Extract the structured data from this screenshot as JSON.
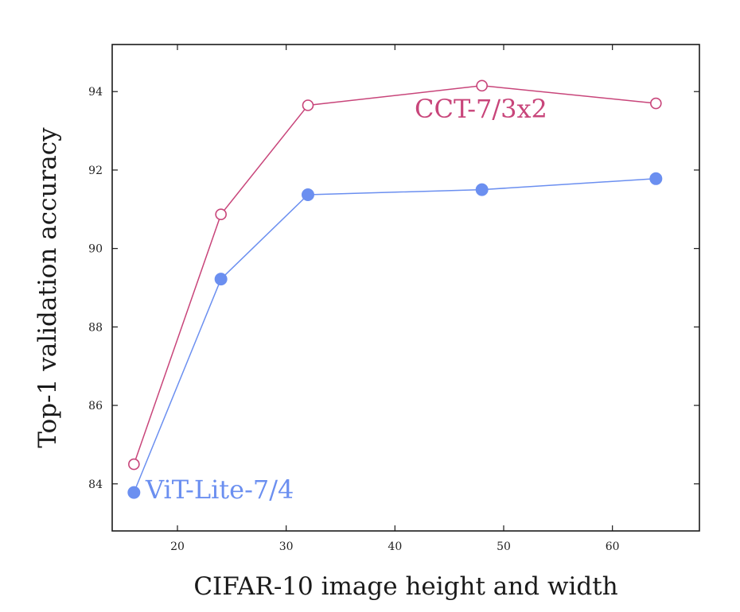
{
  "chart_data": {
    "type": "line",
    "xlabel": "CIFAR-10 image height and width",
    "ylabel": "Top-1 validation accuracy",
    "xlim": [
      14,
      68
    ],
    "ylim": [
      82.8,
      95.2
    ],
    "xticks": [
      "20",
      "30",
      "40",
      "50",
      "60"
    ],
    "yticks": [
      "84",
      "86",
      "88",
      "90",
      "92",
      "94"
    ],
    "grid": false,
    "legend": "inline labels",
    "series": [
      {
        "name": "CCT-7/3x2",
        "color": "#c8457a",
        "marker": "open-circle",
        "x": [
          16,
          24,
          32,
          48,
          64
        ],
        "y": [
          84.5,
          90.87,
          93.65,
          94.15,
          93.7
        ]
      },
      {
        "name": "ViT-Lite-7/4",
        "color": "#6b8ff0",
        "marker": "filled-circle",
        "x": [
          16,
          24,
          32,
          48,
          64
        ],
        "y": [
          83.78,
          89.22,
          91.37,
          91.5,
          91.78
        ]
      }
    ]
  }
}
